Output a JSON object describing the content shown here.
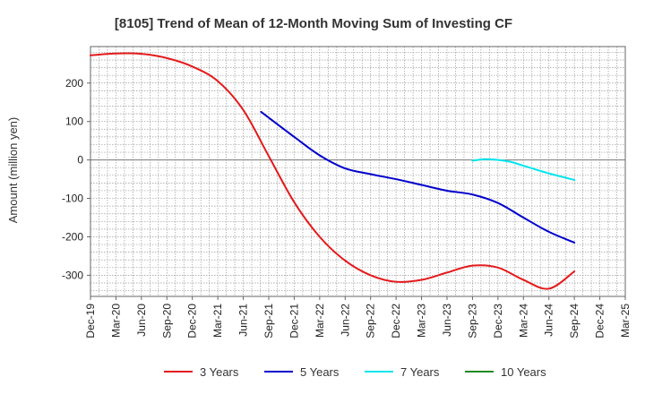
{
  "chart_data": {
    "type": "line",
    "title": "[8105]  Trend of Mean of 12-Month Moving Sum of Investing CF",
    "xlabel": "",
    "ylabel": "Amount (million yen)",
    "ylim": [
      -355,
      295
    ],
    "y_ticks": [
      200,
      100,
      0,
      -100,
      -200,
      -300
    ],
    "x_ticks": [
      "Dec-19",
      "Mar-20",
      "Jun-20",
      "Sep-20",
      "Dec-20",
      "Mar-21",
      "Jun-21",
      "Sep-21",
      "Dec-21",
      "Mar-22",
      "Jun-22",
      "Sep-22",
      "Dec-22",
      "Mar-23",
      "Jun-23",
      "Sep-23",
      "Dec-23",
      "Mar-24",
      "Jun-24",
      "Sep-24",
      "Dec-24",
      "Mar-25"
    ],
    "grid": true,
    "legend_position": "bottom",
    "series": [
      {
        "name": "3 Years",
        "color": "#e41a1c",
        "points": [
          [
            0,
            272
          ],
          [
            1,
            277
          ],
          [
            2,
            276
          ],
          [
            3,
            265
          ],
          [
            4,
            243
          ],
          [
            5,
            205
          ],
          [
            6,
            130
          ],
          [
            7,
            10
          ],
          [
            8,
            -110
          ],
          [
            9,
            -200
          ],
          [
            10,
            -262
          ],
          [
            11,
            -300
          ],
          [
            12,
            -317
          ],
          [
            13,
            -312
          ],
          [
            14,
            -293
          ],
          [
            15,
            -275
          ],
          [
            16,
            -280
          ],
          [
            17,
            -312
          ],
          [
            18,
            -335
          ],
          [
            19,
            -290
          ]
        ]
      },
      {
        "name": "5 Years",
        "color": "#0000cc",
        "points": [
          [
            6.7,
            125
          ],
          [
            7,
            110
          ],
          [
            8,
            60
          ],
          [
            9,
            12
          ],
          [
            10,
            -22
          ],
          [
            11,
            -37
          ],
          [
            12,
            -50
          ],
          [
            13,
            -65
          ],
          [
            14,
            -80
          ],
          [
            15,
            -90
          ],
          [
            16,
            -112
          ],
          [
            17,
            -150
          ],
          [
            18,
            -187
          ],
          [
            19,
            -215
          ]
        ]
      },
      {
        "name": "7 Years",
        "color": "#00e5ee",
        "points": [
          [
            15,
            -2
          ],
          [
            15.5,
            2
          ],
          [
            16,
            0
          ],
          [
            16.5,
            -5
          ],
          [
            17,
            -15
          ],
          [
            18,
            -35
          ],
          [
            19,
            -52
          ]
        ]
      },
      {
        "name": "10 Years",
        "color": "#228b22",
        "points": []
      }
    ]
  }
}
